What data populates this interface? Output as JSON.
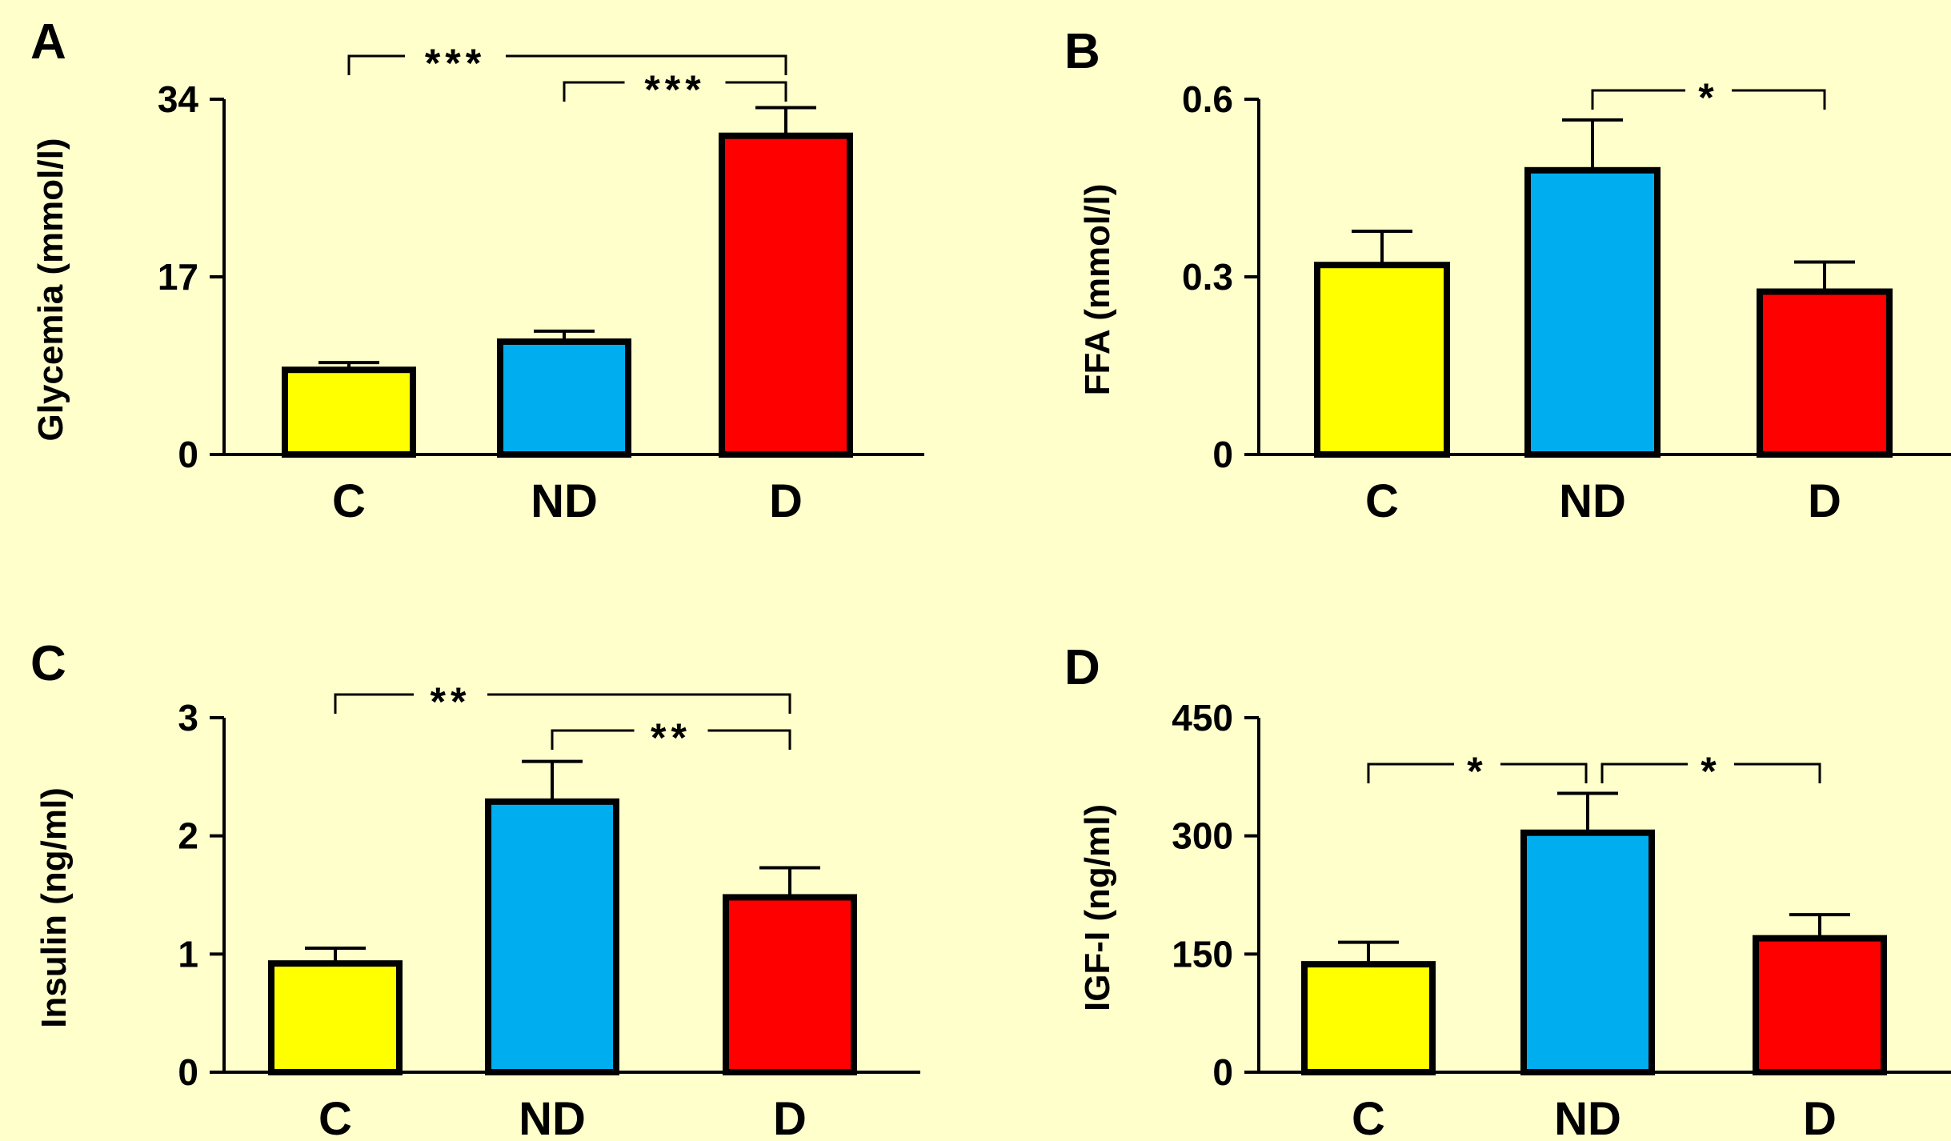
{
  "colors": {
    "background": "#ffffcc",
    "C": "#ffff00",
    "ND": "#00aeef",
    "D": "#ff0000",
    "stroke": "#000000"
  },
  "chart_data": [
    {
      "type": "bar",
      "panel_label": "A",
      "title": "",
      "xlabel": "",
      "ylabel": "Glycemia (mmol/l)",
      "categories": [
        "C",
        "ND",
        "D"
      ],
      "values": [
        8.1,
        10.8,
        30.5
      ],
      "errors": [
        0.7,
        1.0,
        2.7
      ],
      "ylim": [
        0,
        34
      ],
      "yticks": [
        0,
        17,
        34
      ],
      "yticklabels": [
        "0",
        "17",
        "34"
      ],
      "significance": [
        {
          "from": "C",
          "to": "D",
          "label": "***"
        },
        {
          "from": "ND",
          "to": "D",
          "label": "***"
        }
      ]
    },
    {
      "type": "bar",
      "panel_label": "B",
      "title": "",
      "xlabel": "",
      "ylabel": "FFA (mmol/l)",
      "categories": [
        "C",
        "ND",
        "D"
      ],
      "values": [
        0.32,
        0.48,
        0.275
      ],
      "errors": [
        0.057,
        0.085,
        0.05
      ],
      "ylim": [
        0,
        0.6
      ],
      "yticks": [
        0,
        0.3,
        0.6
      ],
      "yticklabels": [
        "0",
        "0.3",
        "0.6"
      ],
      "significance": [
        {
          "from": "ND",
          "to": "D",
          "label": "*"
        }
      ]
    },
    {
      "type": "bar",
      "panel_label": "C",
      "title": "",
      "xlabel": "",
      "ylabel": "Insulin (ng/ml)",
      "categories": [
        "C",
        "ND",
        "D"
      ],
      "values": [
        0.92,
        2.29,
        1.48
      ],
      "errors": [
        0.13,
        0.34,
        0.25
      ],
      "ylim": [
        0,
        3
      ],
      "yticks": [
        0,
        1,
        2,
        3
      ],
      "yticklabels": [
        "0",
        "1",
        "2",
        "3"
      ],
      "significance": [
        {
          "from": "C",
          "to": "D",
          "label": "**"
        },
        {
          "from": "ND",
          "to": "D",
          "label": "**"
        }
      ]
    },
    {
      "type": "bar",
      "panel_label": "D",
      "title": "",
      "xlabel": "",
      "ylabel": "IGF-I (ng/ml)",
      "categories": [
        "C",
        "ND",
        "D"
      ],
      "values": [
        137,
        304,
        170
      ],
      "errors": [
        28,
        50,
        30
      ],
      "ylim": [
        0,
        450
      ],
      "yticks": [
        0,
        150,
        300,
        450
      ],
      "yticklabels": [
        "0",
        "150",
        "300",
        "450"
      ],
      "significance": [
        {
          "from": "C",
          "to": "ND",
          "label": "*"
        },
        {
          "from": "ND",
          "to": "D",
          "label": "*"
        }
      ]
    }
  ]
}
